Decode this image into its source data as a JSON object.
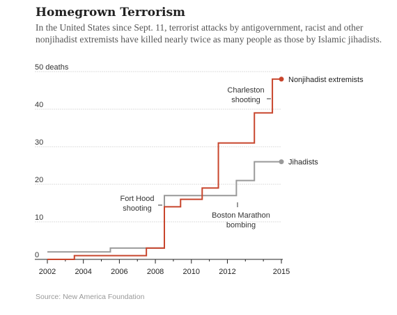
{
  "header": {
    "title": "Homegrown Terrorism",
    "subtitle": "In the United States since Sept. 11, terrorist attacks by antigovernment, racist and other nonjihadist extremists have killed nearly twice as many people as those by Islamic jihadists."
  },
  "footer": {
    "source": "Source: New America Foundation"
  },
  "chart_data": {
    "type": "line",
    "step": true,
    "x_range": [
      2002,
      2015
    ],
    "ylim": [
      0,
      50
    ],
    "y_ticks": [
      0,
      10,
      20,
      30,
      40,
      50
    ],
    "y_tick_labels": [
      "0",
      "10",
      "20",
      "30",
      "40",
      "50 deaths"
    ],
    "x_ticks": [
      2002,
      2004,
      2006,
      2008,
      2010,
      2012,
      2015
    ],
    "x_tick_labels": [
      "2002",
      "2004",
      "2006",
      "2008",
      "2010",
      "2012",
      "2015"
    ],
    "x_minor_ticks": [
      2003,
      2005,
      2007,
      2009,
      2011,
      2013,
      2014
    ],
    "grid": true,
    "series": [
      {
        "name": "Nonjihadist extremists",
        "color": "#c8452c",
        "points": [
          [
            2002,
            0
          ],
          [
            2003.5,
            1
          ],
          [
            2007.5,
            3
          ],
          [
            2008.5,
            14
          ],
          [
            2009.4,
            16
          ],
          [
            2010.6,
            19
          ],
          [
            2011.5,
            31
          ],
          [
            2013.5,
            39
          ],
          [
            2014.5,
            48
          ],
          [
            2015,
            48
          ]
        ]
      },
      {
        "name": "Jihadists",
        "color": "#999999",
        "points": [
          [
            2002,
            2
          ],
          [
            2005.5,
            3
          ],
          [
            2007.5,
            3
          ],
          [
            2008.5,
            17
          ],
          [
            2012.5,
            21
          ],
          [
            2013.5,
            26
          ],
          [
            2015,
            26
          ]
        ]
      }
    ],
    "annotations": [
      {
        "text": [
          "Charleston",
          "shooting"
        ],
        "x": 2014.3,
        "y": 39
      },
      {
        "text": [
          "Fort Hood",
          "shooting"
        ],
        "x": 2008.6,
        "y": 14
      },
      {
        "text": [
          "Boston Marathon",
          "bombing"
        ],
        "x": 2012.6,
        "y": 17
      }
    ]
  }
}
